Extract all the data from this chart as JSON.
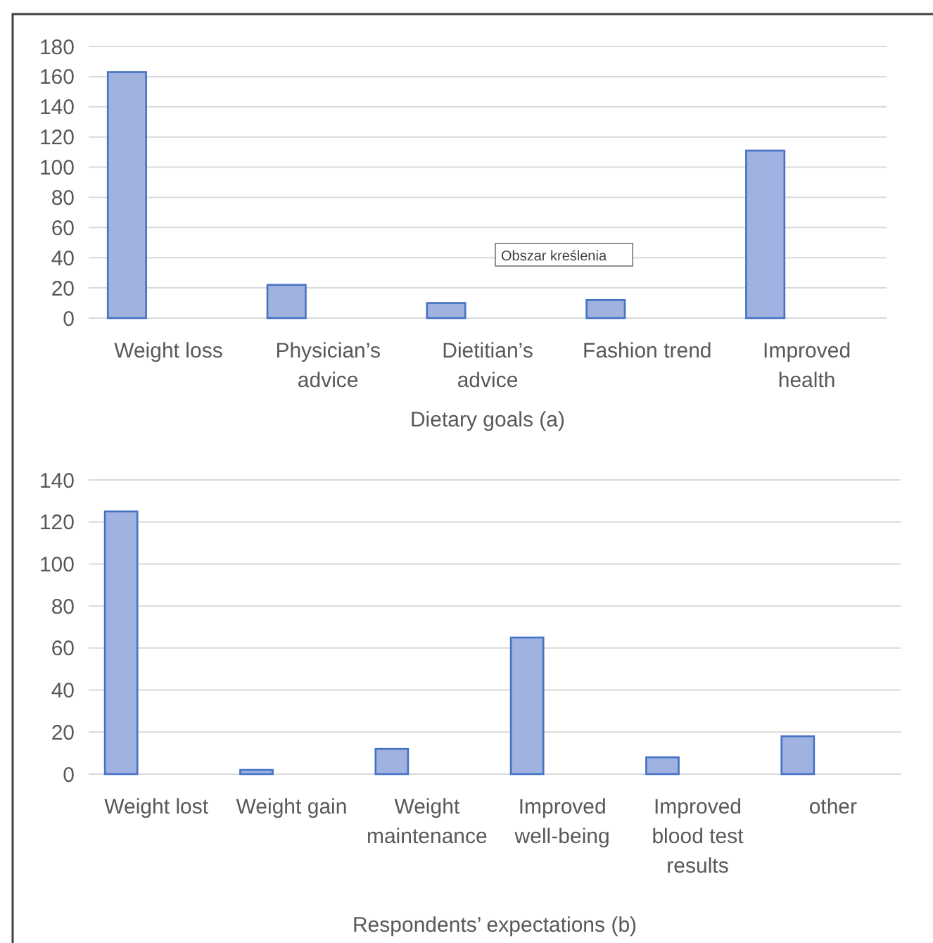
{
  "chart_data": [
    {
      "type": "bar",
      "xlabel": "Dietary goals (a)",
      "categories": [
        "Weight loss",
        "Physician’s advice",
        "Dietitian’s advice",
        "Fashion trend",
        "Improved health"
      ],
      "values": [
        163,
        22,
        10,
        12,
        111
      ],
      "color": "#9fb2e0",
      "ylim": [
        0,
        180
      ],
      "yticks": [
        0,
        20,
        40,
        60,
        80,
        100,
        120,
        140,
        160,
        180
      ],
      "grid": "y",
      "annotations": [
        "Obszar kreślenia"
      ]
    },
    {
      "type": "bar",
      "xlabel": "Respondents’ expectations (b)",
      "categories": [
        "Weight lost",
        "Weight gain",
        "Weight maintenance",
        "Improved well-being",
        "Improved blood test results",
        "other"
      ],
      "values": [
        125,
        2,
        12,
        65,
        8,
        18
      ],
      "color": "#9fb2e0",
      "ylim": [
        0,
        140
      ],
      "yticks": [
        0,
        20,
        40,
        60,
        80,
        100,
        120,
        140
      ],
      "grid": "y"
    }
  ]
}
